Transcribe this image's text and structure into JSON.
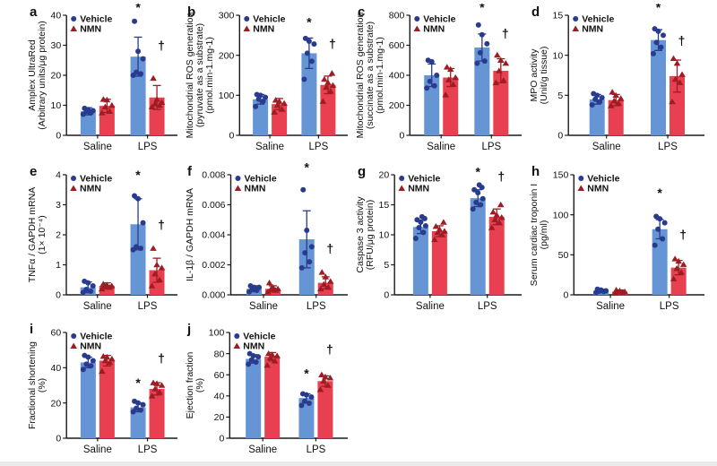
{
  "figure": {
    "legend": {
      "vehicle": "Vehicle",
      "nmn": "NMN"
    },
    "categories": [
      "Saline",
      "LPS"
    ],
    "sig": {
      "star": "*",
      "dagger": "†"
    },
    "colors": {
      "vehicle_bar": "#6695d6",
      "nmn_bar": "#e84050",
      "vehicle_point": "#283b8f",
      "nmn_point": "#9e1c24",
      "vehicle_err": "#283b8f",
      "nmn_err": "#9e1c24",
      "axis": "#1a1a1a",
      "legend_vehicle_text": "#283b8f",
      "legend_nmn_text": "#9e1c24"
    }
  },
  "chart_data": [
    {
      "label": "a",
      "type": "bar",
      "ylabel_lines": [
        "Amplex UltraRed",
        "(Arbitrary units/μg protein)"
      ],
      "ylim": [
        0,
        40
      ],
      "ytick_values": [
        0,
        10,
        20,
        30,
        40
      ],
      "ytick_labels": [
        "0",
        "10",
        "20",
        "30",
        "40"
      ],
      "categories": [
        "Saline",
        "LPS"
      ],
      "series_order": [
        "Saline-Vehicle",
        "Saline-NMN",
        "LPS-Vehicle",
        "LPS-NMN"
      ],
      "means": [
        8,
        9.8,
        26.2,
        12.6
      ],
      "errors": [
        1.2,
        2.2,
        6.5,
        4.0
      ],
      "points": [
        [
          7,
          7.5,
          8,
          8.2,
          8.6,
          9
        ],
        [
          7.5,
          8,
          9.5,
          10,
          11.8,
          12
        ],
        [
          20,
          20.5,
          21,
          25.5,
          28,
          38
        ],
        [
          9.5,
          10,
          10.5,
          11,
          12,
          19
        ]
      ],
      "annotations": {
        "star_value": 43,
        "dagger_value": 28.5
      }
    },
    {
      "label": "b",
      "type": "bar",
      "ylabel_lines": [
        "Mitochondrial ROS generation",
        "(pyruvate as a substrate)",
        "(pmol.min-1.mg-1)"
      ],
      "ylim": [
        0,
        300
      ],
      "ytick_values": [
        0,
        100,
        200,
        300
      ],
      "ytick_labels": [
        "0",
        "100",
        "200",
        "300"
      ],
      "categories": [
        "Saline",
        "LPS"
      ],
      "series_order": [
        "Saline-Vehicle",
        "Saline-NMN",
        "LPS-Vehicle",
        "LPS-NMN"
      ],
      "means": [
        90,
        78,
        205,
        126
      ],
      "errors": [
        12,
        14,
        38,
        22
      ],
      "points": [
        [
          72,
          85,
          90,
          95,
          100,
          102
        ],
        [
          58,
          65,
          75,
          80,
          85,
          88
        ],
        [
          140,
          185,
          205,
          228,
          235,
          242
        ],
        [
          85,
          110,
          120,
          125,
          132,
          140,
          155
        ]
      ],
      "annotations": {
        "star_value": 272,
        "dagger_value": 218
      }
    },
    {
      "label": "c",
      "type": "bar",
      "ylabel_lines": [
        "Mitochondrial ROS generation",
        "(succinate as a substrate)",
        "(pmol.min-1.mg-1)"
      ],
      "ylim": [
        0,
        800
      ],
      "ytick_values": [
        0,
        200,
        400,
        600,
        800
      ],
      "ytick_labels": [
        "0",
        "200",
        "400",
        "600",
        "800"
      ],
      "categories": [
        "Saline",
        "LPS"
      ],
      "series_order": [
        "Saline-Vehicle",
        "Saline-NMN",
        "LPS-Vehicle",
        "LPS-NMN"
      ],
      "means": [
        400,
        385,
        585,
        430
      ],
      "errors": [
        75,
        60,
        90,
        80
      ],
      "points": [
        [
          315,
          330,
          360,
          400,
          490,
          500
        ],
        [
          270,
          340,
          370,
          385,
          440,
          455
        ],
        [
          480,
          495,
          550,
          610,
          670,
          735
        ],
        [
          350,
          365,
          430,
          480,
          500,
          535
        ]
      ],
      "annotations": {
        "star_value": 830,
        "dagger_value": 650
      }
    },
    {
      "label": "d",
      "type": "bar",
      "ylabel_lines": [
        "MPO activity",
        "(Unit/g tissue)"
      ],
      "ylim": [
        0,
        15
      ],
      "ytick_values": [
        0,
        5,
        10,
        15
      ],
      "ytick_labels": [
        "0",
        "5",
        "10",
        "15"
      ],
      "categories": [
        "Saline",
        "LPS"
      ],
      "series_order": [
        "Saline-Vehicle",
        "Saline-NMN",
        "LPS-Vehicle",
        "LPS-NMN"
      ],
      "means": [
        4.5,
        4.4,
        11.9,
        7.4
      ],
      "errors": [
        0.6,
        0.7,
        1.3,
        2.0
      ],
      "points": [
        [
          3.8,
          4.2,
          4.5,
          4.7,
          5.0,
          5.2
        ],
        [
          3.7,
          4.0,
          4.3,
          4.6,
          5.0,
          5.4
        ],
        [
          10.2,
          11,
          11.6,
          12.5,
          13,
          13.3
        ],
        [
          4.2,
          6.6,
          7,
          7.6,
          9,
          9.6
        ]
      ],
      "annotations": {
        "star_value": 15.7,
        "dagger_value": 11.3
      }
    },
    {
      "label": "e",
      "type": "bar",
      "ylabel_lines": [
        "TNFα / GAPDH mRNA",
        "(1× 10⁻⁴)"
      ],
      "ylim": [
        0,
        4
      ],
      "ytick_values": [
        0,
        1,
        2,
        3,
        4
      ],
      "ytick_labels": [
        "0",
        "1",
        "2",
        "3",
        "4"
      ],
      "categories": [
        "Saline",
        "LPS"
      ],
      "series_order": [
        "Saline-Vehicle",
        "Saline-NMN",
        "LPS-Vehicle",
        "LPS-NMN"
      ],
      "means": [
        0.25,
        0.3,
        2.35,
        0.82
      ],
      "errors": [
        0.18,
        0.1,
        0.85,
        0.4
      ],
      "points": [
        [
          0.08,
          0.12,
          0.18,
          0.3,
          0.4,
          0.45
        ],
        [
          0.2,
          0.25,
          0.28,
          0.3,
          0.33,
          0.36
        ],
        [
          1.5,
          1.55,
          1.6,
          2.4,
          3.2,
          3.3
        ],
        [
          0.3,
          0.5,
          0.7,
          0.9,
          1.0,
          1.55
        ]
      ],
      "annotations": {
        "star_value": 3.85,
        "dagger_value": 2.2
      }
    },
    {
      "label": "f",
      "type": "bar",
      "ylabel_lines": [
        "IL-1β / GAPDH mRNA"
      ],
      "ylim": [
        0,
        0.008
      ],
      "ytick_values": [
        0,
        0.002,
        0.004,
        0.006,
        0.008
      ],
      "ytick_labels": [
        "0.000",
        "0.002",
        "0.004",
        "0.006",
        "0.008"
      ],
      "categories": [
        "Saline",
        "LPS"
      ],
      "series_order": [
        "Saline-Vehicle",
        "Saline-NMN",
        "LPS-Vehicle",
        "LPS-NMN"
      ],
      "means": [
        0.0004,
        0.0004,
        0.0037,
        0.0008
      ],
      "errors": [
        0.0002,
        0.0002,
        0.0019,
        0.0004
      ],
      "points": [
        [
          0.0002,
          0.0003,
          0.0004,
          0.0005,
          0.0005,
          0.0006
        ],
        [
          0.0002,
          0.0003,
          0.0004,
          0.0004,
          0.0005,
          0.0008
        ],
        [
          0.0018,
          0.0022,
          0.0028,
          0.0032,
          0.0043,
          0.007
        ],
        [
          0.0004,
          0.0005,
          0.0007,
          0.0009,
          0.0012,
          0.0015
        ]
      ],
      "annotations": {
        "star_value": 0.0082,
        "dagger_value": 0.0028
      }
    },
    {
      "label": "g",
      "type": "bar",
      "ylabel_lines": [
        "Caspase 3 activity",
        "(RFU/μg protein)"
      ],
      "ylim": [
        0,
        20
      ],
      "ytick_values": [
        0,
        5,
        10,
        15,
        20
      ],
      "ytick_labels": [
        "0",
        "5",
        "10",
        "15",
        "20"
      ],
      "categories": [
        "Saline",
        "LPS"
      ],
      "series_order": [
        "Saline-Vehicle",
        "Saline-NMN",
        "LPS-Vehicle",
        "LPS-NMN"
      ],
      "means": [
        11.3,
        10.6,
        16.1,
        13.0
      ],
      "errors": [
        1.1,
        0.9,
        1.4,
        1.3
      ],
      "points": [
        [
          9.4,
          10.4,
          11.2,
          11.5,
          12.1,
          12.5,
          12.7,
          13
        ],
        [
          9.2,
          10,
          10.4,
          10.6,
          10.9,
          11.4,
          12.1
        ],
        [
          14.3,
          15,
          15.4,
          16,
          17,
          17.5,
          17.9,
          18.3
        ],
        [
          11.2,
          12,
          12.5,
          12.9,
          13.3,
          13.8,
          15
        ]
      ],
      "annotations": {
        "star_value": 19.8,
        "dagger_value": 19.0
      }
    },
    {
      "label": "h",
      "type": "bar",
      "ylabel_lines": [
        "Serum cardiac troponin I",
        "(pg/ml)"
      ],
      "ylim": [
        0,
        150
      ],
      "ytick_values": [
        0,
        50,
        100,
        150
      ],
      "ytick_labels": [
        "0",
        "50",
        "100",
        "150"
      ],
      "categories": [
        "Saline",
        "LPS"
      ],
      "series_order": [
        "Saline-Vehicle",
        "Saline-NMN",
        "LPS-Vehicle",
        "LPS-NMN"
      ],
      "means": [
        5,
        4,
        82,
        34
      ],
      "errors": [
        2,
        2,
        12,
        9
      ],
      "points": [
        [
          3,
          4,
          4.5,
          5,
          6,
          7
        ],
        [
          2,
          3,
          3.5,
          4,
          5,
          6
        ],
        [
          62,
          70,
          82,
          90,
          95,
          98
        ],
        [
          20,
          28,
          33,
          38,
          42,
          45
        ]
      ],
      "annotations": {
        "star_value": 122,
        "dagger_value": 70
      }
    },
    {
      "label": "i",
      "type": "bar",
      "ylabel_lines": [
        "Fractional shortening",
        "(%)"
      ],
      "ylim": [
        0,
        60
      ],
      "ytick_values": [
        0,
        20,
        40,
        60
      ],
      "ytick_labels": [
        "0",
        "20",
        "40",
        "60"
      ],
      "categories": [
        "Saline",
        "LPS"
      ],
      "series_order": [
        "Saline-Vehicle",
        "Saline-NMN",
        "LPS-Vehicle",
        "LPS-NMN"
      ],
      "means": [
        43,
        44,
        17.5,
        28
      ],
      "errors": [
        3,
        3,
        2.5,
        3.5
      ],
      "points": [
        [
          39,
          41,
          42,
          44,
          46,
          47
        ],
        [
          38,
          43,
          44,
          45,
          46,
          46.5
        ],
        [
          15,
          16,
          17,
          19,
          20,
          21
        ],
        [
          24,
          26,
          28,
          30,
          31,
          31.5
        ]
      ],
      "annotations": {
        "star_value": 29,
        "dagger_value": 43
      }
    },
    {
      "label": "j",
      "type": "bar",
      "ylabel_lines": [
        "Ejection fraction",
        "(%)"
      ],
      "ylim": [
        0,
        100
      ],
      "ytick_values": [
        0,
        20,
        40,
        60,
        80,
        100
      ],
      "ytick_labels": [
        "0",
        "20",
        "40",
        "60",
        "80",
        "100"
      ],
      "categories": [
        "Saline",
        "LPS"
      ],
      "series_order": [
        "Saline-Vehicle",
        "Saline-NMN",
        "LPS-Vehicle",
        "LPS-NMN"
      ],
      "means": [
        75,
        77,
        38,
        54
      ],
      "errors": [
        4,
        4,
        4,
        5
      ],
      "points": [
        [
          70,
          72,
          74,
          77,
          78,
          80
        ],
        [
          69,
          73,
          76,
          78,
          79,
          80
        ],
        [
          31,
          33,
          35,
          39,
          41,
          42
        ],
        [
          46,
          50,
          54,
          57,
          58,
          60
        ]
      ],
      "annotations": {
        "star_value": 57,
        "dagger_value": 80
      }
    }
  ]
}
